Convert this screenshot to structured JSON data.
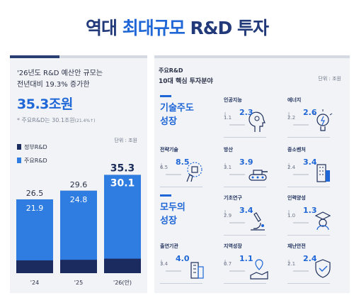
{
  "title": {
    "part1": "역대 ",
    "highlight": "최대규모",
    "part2": " R&D 투자"
  },
  "left": {
    "intro_line1": "'26년도 R&D 예산안 규모는",
    "intro_line2": "전년대비 19.3% 증가한",
    "big_value": "35.3조원",
    "note": "* 주요R&D는 30.1조원",
    "note_small": "(21.4%↑)",
    "unit": "단위 : 조원",
    "legend_gov": "정부R&D",
    "legend_main": "주요R&D",
    "colors": {
      "gov": "#1c2b5f",
      "main": "#2f7de1"
    }
  },
  "chart_data": {
    "type": "bar",
    "categories": [
      "'24",
      "'25",
      "'26(안)"
    ],
    "series": [
      {
        "name": "정부R&D",
        "values": [
          26.5,
          29.6,
          35.3
        ]
      },
      {
        "name": "주요R&D",
        "values": [
          21.9,
          24.8,
          30.1
        ]
      }
    ],
    "ylim": [
      0,
      40
    ],
    "grid": false,
    "legend": "top-left"
  },
  "right": {
    "head1": "주요R&D",
    "head2": "10대 핵심 투자분야",
    "unit": "단위 : 조원",
    "group1": [
      "기술주도",
      "성장"
    ],
    "group2": [
      "모두의",
      "성장"
    ],
    "cards": [
      {
        "label": "인공지능",
        "from": "1.1",
        "to": "2.3",
        "icon": "ai-head-icon"
      },
      {
        "label": "에너지",
        "from": "2.2",
        "to": "2.6",
        "icon": "lightbulb-icon"
      },
      {
        "label": "전략기술",
        "from": "6.5",
        "to": "8.5",
        "icon": "touch-chip-icon"
      },
      {
        "label": "방산",
        "from": "3.1",
        "to": "3.9",
        "icon": "tank-icon"
      },
      {
        "label": "중소벤처",
        "from": "2.4",
        "to": "3.4",
        "icon": "building-icon"
      },
      {
        "label": "기초연구",
        "from": "2.9",
        "to": "3.4",
        "icon": "microscope-icon"
      },
      {
        "label": "인력양성",
        "from": "1.0",
        "to": "1.3",
        "icon": "graduate-icon"
      },
      {
        "label": "출연기관",
        "from": "3.4",
        "to": "4.0",
        "icon": "institute-icon"
      },
      {
        "label": "지역성장",
        "from": "0.7",
        "to": "1.1",
        "icon": "region-icon"
      },
      {
        "label": "재난안전",
        "from": "2.1",
        "to": "2.4",
        "icon": "shield-icon"
      }
    ]
  }
}
